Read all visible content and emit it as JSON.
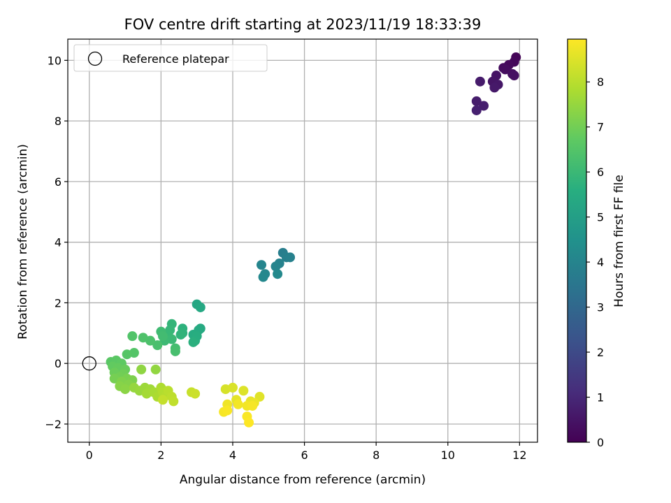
{
  "chart_data": {
    "type": "scatter",
    "title": "FOV centre drift starting at 2023/11/19 18:33:39",
    "xlabel": "Angular distance from reference (arcmin)",
    "ylabel": "Rotation from reference (arcmin)",
    "xlim": [
      -0.6,
      12.5
    ],
    "ylim": [
      -2.6,
      10.7
    ],
    "xticks": [
      0,
      2,
      4,
      6,
      8,
      10,
      12
    ],
    "yticks": [
      -2,
      0,
      2,
      4,
      6,
      8,
      10
    ],
    "grid": true,
    "legend": {
      "placement": "top-left",
      "entries": [
        "Reference platepar"
      ]
    },
    "reference_point": {
      "x": 0,
      "y": 0,
      "marker": "open-circle"
    },
    "colorbar": {
      "label": "Hours from first FF file",
      "colormap": "viridis",
      "range": [
        0,
        8.95
      ],
      "ticks": [
        0,
        1,
        2,
        3,
        4,
        5,
        6,
        7,
        8
      ]
    },
    "points": [
      {
        "x": 11.9,
        "y": 10.1,
        "c": 0.1
      },
      {
        "x": 11.85,
        "y": 9.95,
        "c": 0.15
      },
      {
        "x": 11.7,
        "y": 9.85,
        "c": 0.2
      },
      {
        "x": 11.55,
        "y": 9.75,
        "c": 0.25
      },
      {
        "x": 11.6,
        "y": 9.7,
        "c": 0.3
      },
      {
        "x": 11.8,
        "y": 9.55,
        "c": 0.35
      },
      {
        "x": 11.85,
        "y": 9.5,
        "c": 0.4
      },
      {
        "x": 11.35,
        "y": 9.5,
        "c": 0.45
      },
      {
        "x": 11.25,
        "y": 9.3,
        "c": 0.5
      },
      {
        "x": 11.4,
        "y": 9.2,
        "c": 0.55
      },
      {
        "x": 11.3,
        "y": 9.1,
        "c": 0.6
      },
      {
        "x": 10.9,
        "y": 9.3,
        "c": 0.65
      },
      {
        "x": 10.8,
        "y": 8.65,
        "c": 0.7
      },
      {
        "x": 11.0,
        "y": 8.5,
        "c": 0.75
      },
      {
        "x": 10.8,
        "y": 8.35,
        "c": 0.8
      },
      {
        "x": 5.4,
        "y": 3.65,
        "c": 3.8
      },
      {
        "x": 5.5,
        "y": 3.5,
        "c": 3.85
      },
      {
        "x": 5.6,
        "y": 3.5,
        "c": 3.9
      },
      {
        "x": 5.3,
        "y": 3.3,
        "c": 3.95
      },
      {
        "x": 5.2,
        "y": 3.2,
        "c": 4.0
      },
      {
        "x": 4.8,
        "y": 3.25,
        "c": 4.05
      },
      {
        "x": 4.9,
        "y": 2.95,
        "c": 4.1
      },
      {
        "x": 4.85,
        "y": 2.85,
        "c": 4.15
      },
      {
        "x": 5.25,
        "y": 2.95,
        "c": 4.2
      },
      {
        "x": 3.0,
        "y": 1.95,
        "c": 5.3
      },
      {
        "x": 3.1,
        "y": 1.85,
        "c": 5.35
      },
      {
        "x": 3.1,
        "y": 1.15,
        "c": 5.4
      },
      {
        "x": 3.05,
        "y": 1.1,
        "c": 5.45
      },
      {
        "x": 2.9,
        "y": 0.95,
        "c": 5.5
      },
      {
        "x": 3.0,
        "y": 0.9,
        "c": 5.55
      },
      {
        "x": 2.95,
        "y": 0.75,
        "c": 5.6
      },
      {
        "x": 2.9,
        "y": 0.7,
        "c": 5.65
      },
      {
        "x": 2.6,
        "y": 1.15,
        "c": 5.7
      },
      {
        "x": 2.6,
        "y": 1.0,
        "c": 5.75
      },
      {
        "x": 2.55,
        "y": 0.95,
        "c": 5.8
      },
      {
        "x": 2.3,
        "y": 1.3,
        "c": 5.85
      },
      {
        "x": 2.25,
        "y": 1.1,
        "c": 5.9
      },
      {
        "x": 2.2,
        "y": 0.95,
        "c": 5.95
      },
      {
        "x": 2.3,
        "y": 0.8,
        "c": 6.0
      },
      {
        "x": 2.1,
        "y": 0.75,
        "c": 6.05
      },
      {
        "x": 2.0,
        "y": 1.05,
        "c": 6.1
      },
      {
        "x": 2.05,
        "y": 0.9,
        "c": 6.15
      },
      {
        "x": 2.4,
        "y": 0.5,
        "c": 6.2
      },
      {
        "x": 2.4,
        "y": 0.4,
        "c": 6.25
      },
      {
        "x": 1.9,
        "y": 0.6,
        "c": 6.3
      },
      {
        "x": 1.7,
        "y": 0.75,
        "c": 6.35
      },
      {
        "x": 1.5,
        "y": 0.85,
        "c": 6.4
      },
      {
        "x": 1.2,
        "y": 0.9,
        "c": 6.45
      },
      {
        "x": 1.25,
        "y": 0.35,
        "c": 6.5
      },
      {
        "x": 1.05,
        "y": 0.3,
        "c": 6.55
      },
      {
        "x": 0.6,
        "y": 0.05,
        "c": 6.6
      },
      {
        "x": 0.75,
        "y": 0.1,
        "c": 6.65
      },
      {
        "x": 0.9,
        "y": 0.0,
        "c": 6.7
      },
      {
        "x": 0.65,
        "y": -0.1,
        "c": 6.75
      },
      {
        "x": 0.8,
        "y": -0.15,
        "c": 6.8
      },
      {
        "x": 1.0,
        "y": -0.2,
        "c": 6.85
      },
      {
        "x": 0.7,
        "y": -0.3,
        "c": 6.9
      },
      {
        "x": 0.95,
        "y": -0.35,
        "c": 6.95
      },
      {
        "x": 0.85,
        "y": -0.45,
        "c": 7.0
      },
      {
        "x": 0.7,
        "y": -0.5,
        "c": 7.05
      },
      {
        "x": 1.05,
        "y": -0.5,
        "c": 7.1
      },
      {
        "x": 1.2,
        "y": -0.55,
        "c": 7.15
      },
      {
        "x": 0.9,
        "y": -0.6,
        "c": 7.2
      },
      {
        "x": 1.1,
        "y": -0.7,
        "c": 7.25
      },
      {
        "x": 0.85,
        "y": -0.75,
        "c": 7.3
      },
      {
        "x": 1.0,
        "y": -0.85,
        "c": 7.35
      },
      {
        "x": 1.45,
        "y": -0.2,
        "c": 7.4
      },
      {
        "x": 1.85,
        "y": -0.2,
        "c": 7.45
      },
      {
        "x": 1.25,
        "y": -0.8,
        "c": 7.5
      },
      {
        "x": 1.4,
        "y": -0.9,
        "c": 7.55
      },
      {
        "x": 1.55,
        "y": -0.8,
        "c": 7.6
      },
      {
        "x": 1.7,
        "y": -0.85,
        "c": 7.65
      },
      {
        "x": 1.6,
        "y": -1.0,
        "c": 7.7
      },
      {
        "x": 1.8,
        "y": -0.95,
        "c": 7.75
      },
      {
        "x": 1.9,
        "y": -1.1,
        "c": 7.8
      },
      {
        "x": 2.0,
        "y": -0.8,
        "c": 7.85
      },
      {
        "x": 2.05,
        "y": -0.95,
        "c": 7.9
      },
      {
        "x": 2.15,
        "y": -1.05,
        "c": 7.95
      },
      {
        "x": 2.2,
        "y": -0.9,
        "c": 8.0
      },
      {
        "x": 2.3,
        "y": -1.1,
        "c": 8.05
      },
      {
        "x": 2.35,
        "y": -1.25,
        "c": 8.1
      },
      {
        "x": 2.05,
        "y": -1.2,
        "c": 8.15
      },
      {
        "x": 2.85,
        "y": -0.95,
        "c": 8.2
      },
      {
        "x": 2.95,
        "y": -1.0,
        "c": 8.25
      },
      {
        "x": 3.8,
        "y": -0.85,
        "c": 8.4
      },
      {
        "x": 4.0,
        "y": -0.8,
        "c": 8.45
      },
      {
        "x": 4.3,
        "y": -0.9,
        "c": 8.5
      },
      {
        "x": 4.75,
        "y": -1.1,
        "c": 8.55
      },
      {
        "x": 4.1,
        "y": -1.2,
        "c": 8.6
      },
      {
        "x": 4.5,
        "y": -1.25,
        "c": 8.65
      },
      {
        "x": 4.6,
        "y": -1.3,
        "c": 8.7
      },
      {
        "x": 3.85,
        "y": -1.35,
        "c": 8.75
      },
      {
        "x": 4.15,
        "y": -1.35,
        "c": 8.8
      },
      {
        "x": 4.4,
        "y": -1.4,
        "c": 8.8
      },
      {
        "x": 4.55,
        "y": -1.4,
        "c": 8.85
      },
      {
        "x": 3.75,
        "y": -1.6,
        "c": 8.85
      },
      {
        "x": 3.85,
        "y": -1.55,
        "c": 8.9
      },
      {
        "x": 4.4,
        "y": -1.75,
        "c": 8.9
      },
      {
        "x": 4.45,
        "y": -1.95,
        "c": 8.95
      }
    ]
  }
}
